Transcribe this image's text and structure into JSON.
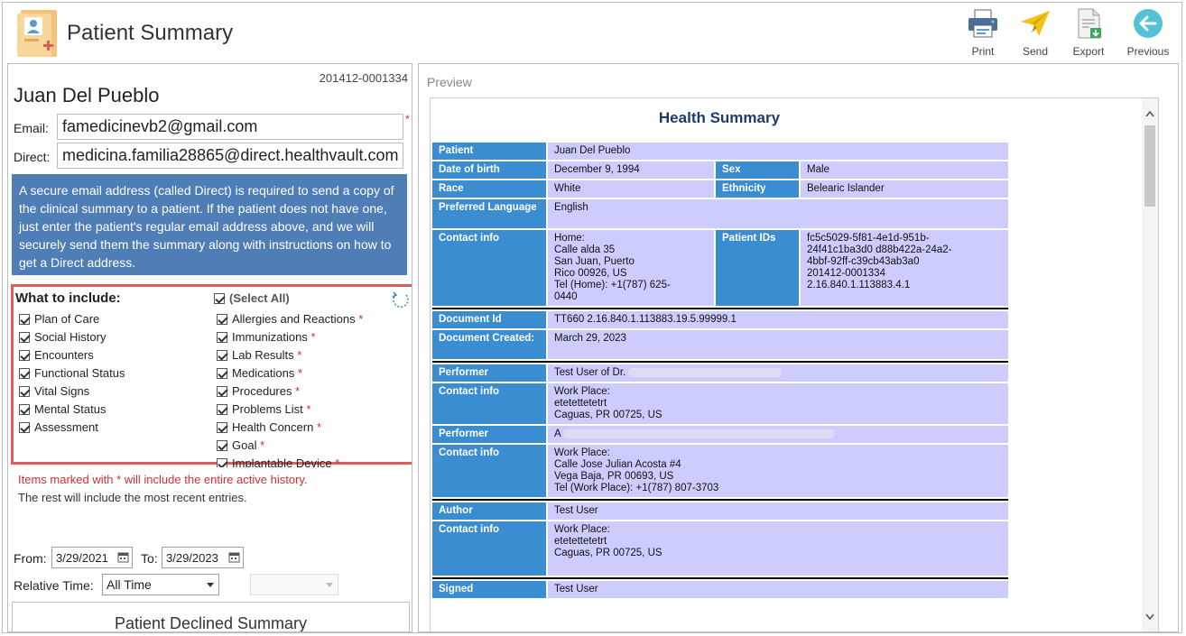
{
  "header": {
    "title": "Patient Summary",
    "tools": [
      {
        "label": "Print",
        "icon": "printer-icon"
      },
      {
        "label": "Send",
        "icon": "paper-plane-icon"
      },
      {
        "label": "Export",
        "icon": "export-document-icon"
      },
      {
        "label": "Previous",
        "icon": "back-arrow-icon"
      }
    ]
  },
  "patient": {
    "record_id": "201412-0001334",
    "name": "Juan Del Pueblo",
    "email_label": "Email:",
    "email": "famedicinevb2@gmail.com",
    "direct_label": "Direct:",
    "direct": "medicina.familia28865@direct.healthvault.com",
    "required_mark": "*"
  },
  "info_text": "A secure email address (called Direct) is required to send a copy of the clinical summary to a patient. If the patient does not have one, just enter the patient's regular email address above, and we will securely send them the summary along with instructions on how to get a Direct address.",
  "include": {
    "title": "What to include:",
    "select_all": "(Select All)",
    "left_items": [
      "Plan of Care",
      "Social History",
      "Encounters",
      "Functional Status",
      "Vital Signs",
      "Mental Status",
      "Assessment"
    ],
    "right_items": [
      "Allergies and Reactions",
      "Immunizations",
      "Lab Results",
      "Medications",
      "Procedures",
      "Problems List",
      "Health Concern",
      "Goal",
      "Implantable Device"
    ],
    "star": "*"
  },
  "notes": {
    "red": "Items marked with * will include the entire active history.",
    "normal": "The rest will include the most recent entries."
  },
  "dates": {
    "from_label": "From:",
    "from_value": "3/29/2021",
    "to_label": "To:",
    "to_value": "3/29/2023",
    "relative_label": "Relative Time:",
    "relative_value": "All Time"
  },
  "declined_button": "Patient Declined Summary",
  "preview": {
    "label": "Preview",
    "doc_title": "Health Summary",
    "patient_label": "Patient",
    "patient_value": "Juan Del Pueblo",
    "dob_label": "Date of birth",
    "dob_value": "December 9, 1994",
    "sex_label": "Sex",
    "sex_value": "Male",
    "race_label": "Race",
    "race_value": "White",
    "ethnicity_label": "Ethnicity",
    "ethnicity_value": "Belearic Islander",
    "lang_label": "Preferred Language",
    "lang_value": "English",
    "contact_label": "Contact info",
    "contact_lines": [
      "Home:",
      "Calle alda 35",
      "San Juan, Puerto",
      "Rico 00926, US",
      "Tel (Home): +1(787) 625-",
      "0440"
    ],
    "ids_label": "Patient IDs",
    "ids_lines": [
      "fc5c5029-5f81-4e1d-951b-",
      "24f41c1ba3d0 d88b422a-24a2-",
      "4bbf-92ff-c39cb43ab3a0",
      "201412-0001334",
      "2.16.840.1.113883.4.1"
    ],
    "docid_label": "Document Id",
    "docid_value": "TT660 2.16.840.1.113883.19.5.99999.1",
    "created_label": "Document Created:",
    "created_value": "March 29, 2023",
    "performer_label": "Performer",
    "performer1_value": "Test User of Dr.",
    "contact1_lines": [
      "Work Place:",
      "etetettetetrt",
      "Caguas, PR 00725, US"
    ],
    "performer2_value": "A",
    "contact2_lines": [
      "Work Place:",
      "Calle Jose Julian Acosta #4",
      "Vega Baja, PR 00693, US",
      "Tel (Work Place): +1(787) 807-3703"
    ],
    "author_label": "Author",
    "author_value": "Test User",
    "contact3_lines": [
      "Work Place:",
      "etetettetetrt",
      "Caguas, PR 00725, US"
    ],
    "signed_label": "Signed",
    "signed_value": "Test User"
  }
}
